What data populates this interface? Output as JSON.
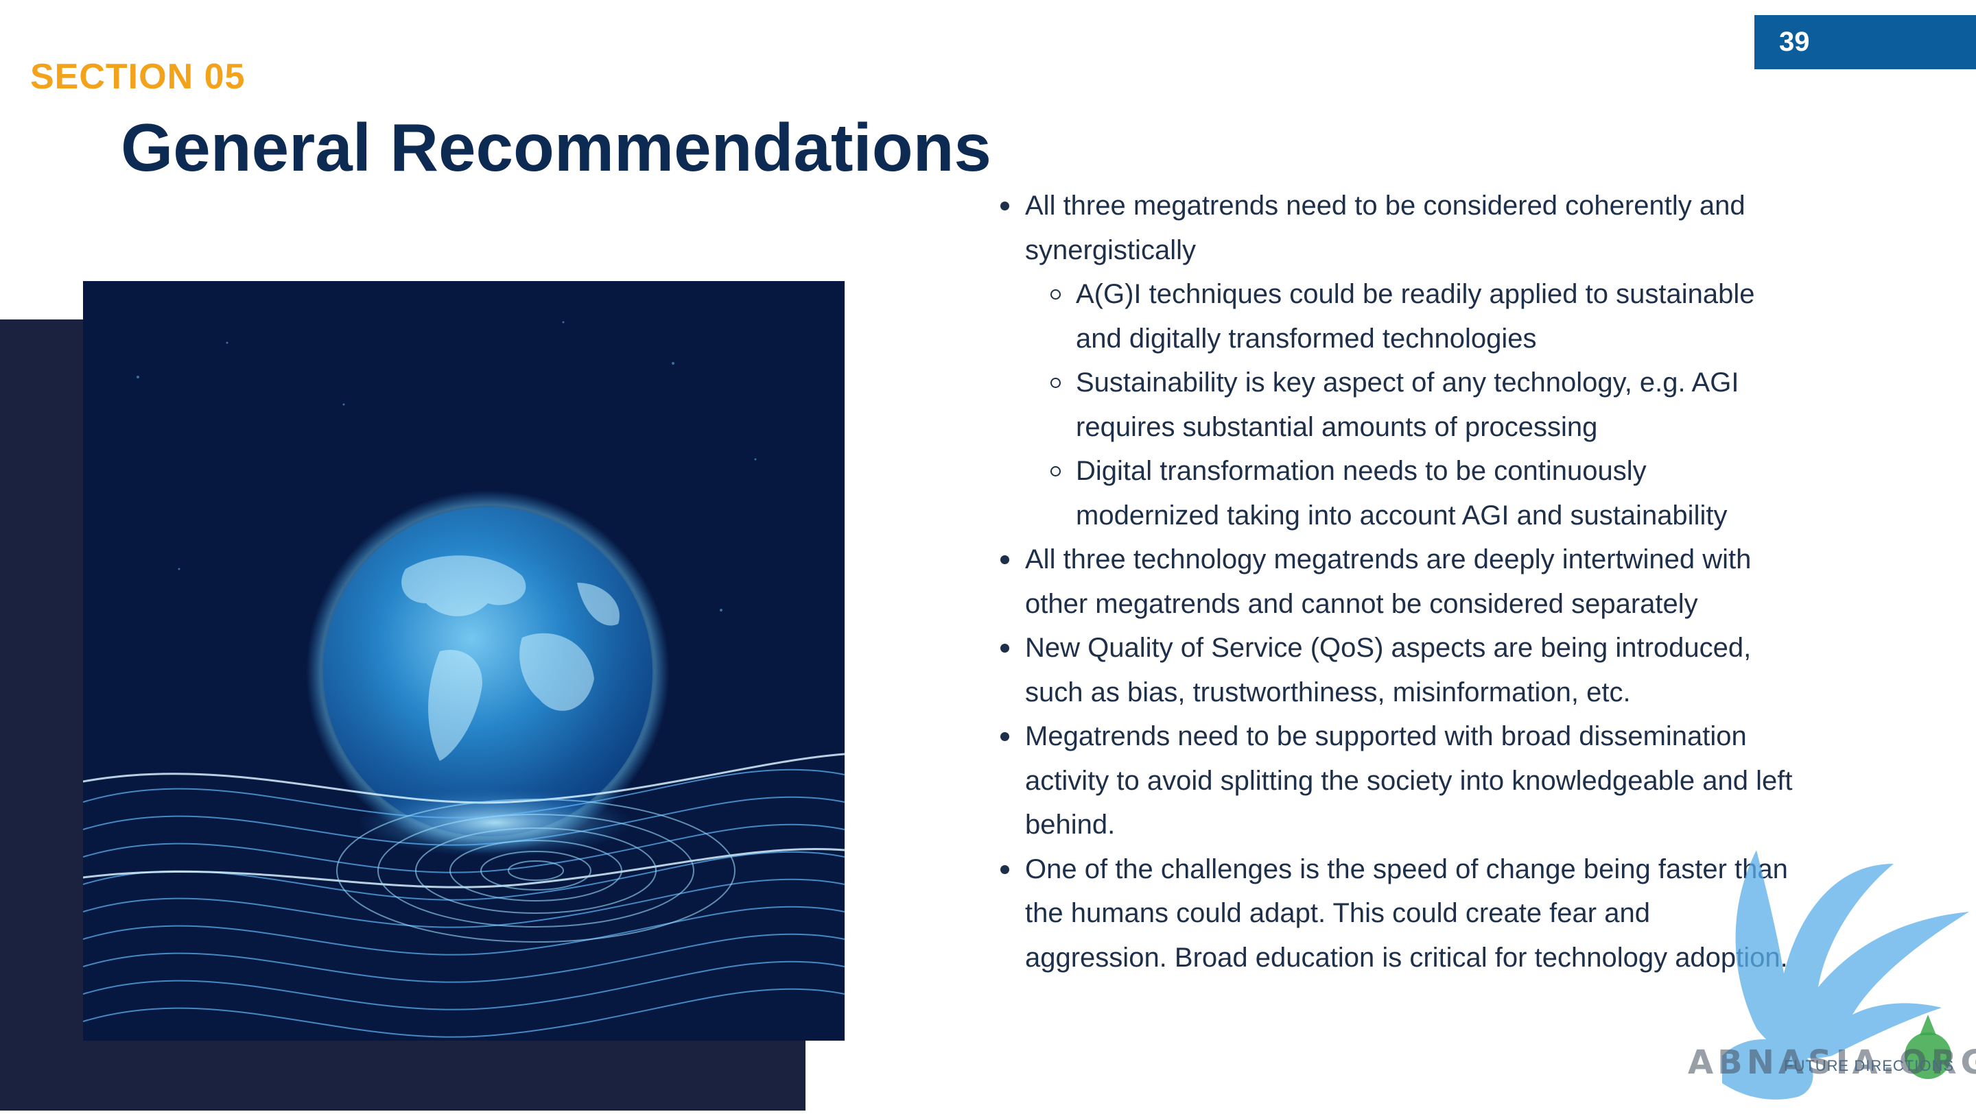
{
  "slide": {
    "page_number": "39",
    "section_label": "SECTION 05",
    "title": "General Recommendations"
  },
  "colors": {
    "accent_orange": "#f2a31b",
    "page_badge_blue": "#0b5e9b",
    "title_navy": "#0d2a52",
    "dark_panel": "#1b2240",
    "body_text": "#1e2f4a"
  },
  "image": {
    "subject": "glowing-earth-globe-over-digital-waves-icon"
  },
  "bullets": [
    {
      "text": "All three megatrends need to be considered coherently and synergistically",
      "sub_items": [
        "A(G)I techniques could be readily applied to sustainable and digitally transformed technologies",
        "Sustainability is key aspect of any technology, e.g. AGI requires substantial amounts of processing",
        "Digital transformation needs to be continuously modernized taking into account AGI and sustainability"
      ]
    },
    {
      "text": "All three technology megatrends are deeply intertwined with other megatrends and cannot be considered separately"
    },
    {
      "text": "New Quality of Service (QoS) aspects are being introduced, such as bias, trustworthiness, misinformation, etc."
    },
    {
      "text": "Megatrends need to be supported with broad dissemination activity to avoid splitting the society into knowledgeable and left behind."
    },
    {
      "text": "One of the challenges is the speed of change being faster than the humans could adapt. This could create fear and aggression. Broad education is critical for technology adoption."
    }
  ],
  "watermark": {
    "logo_text": "ABNASIA.ORG",
    "sub_text": "FUTURE DIRECTIONS"
  }
}
